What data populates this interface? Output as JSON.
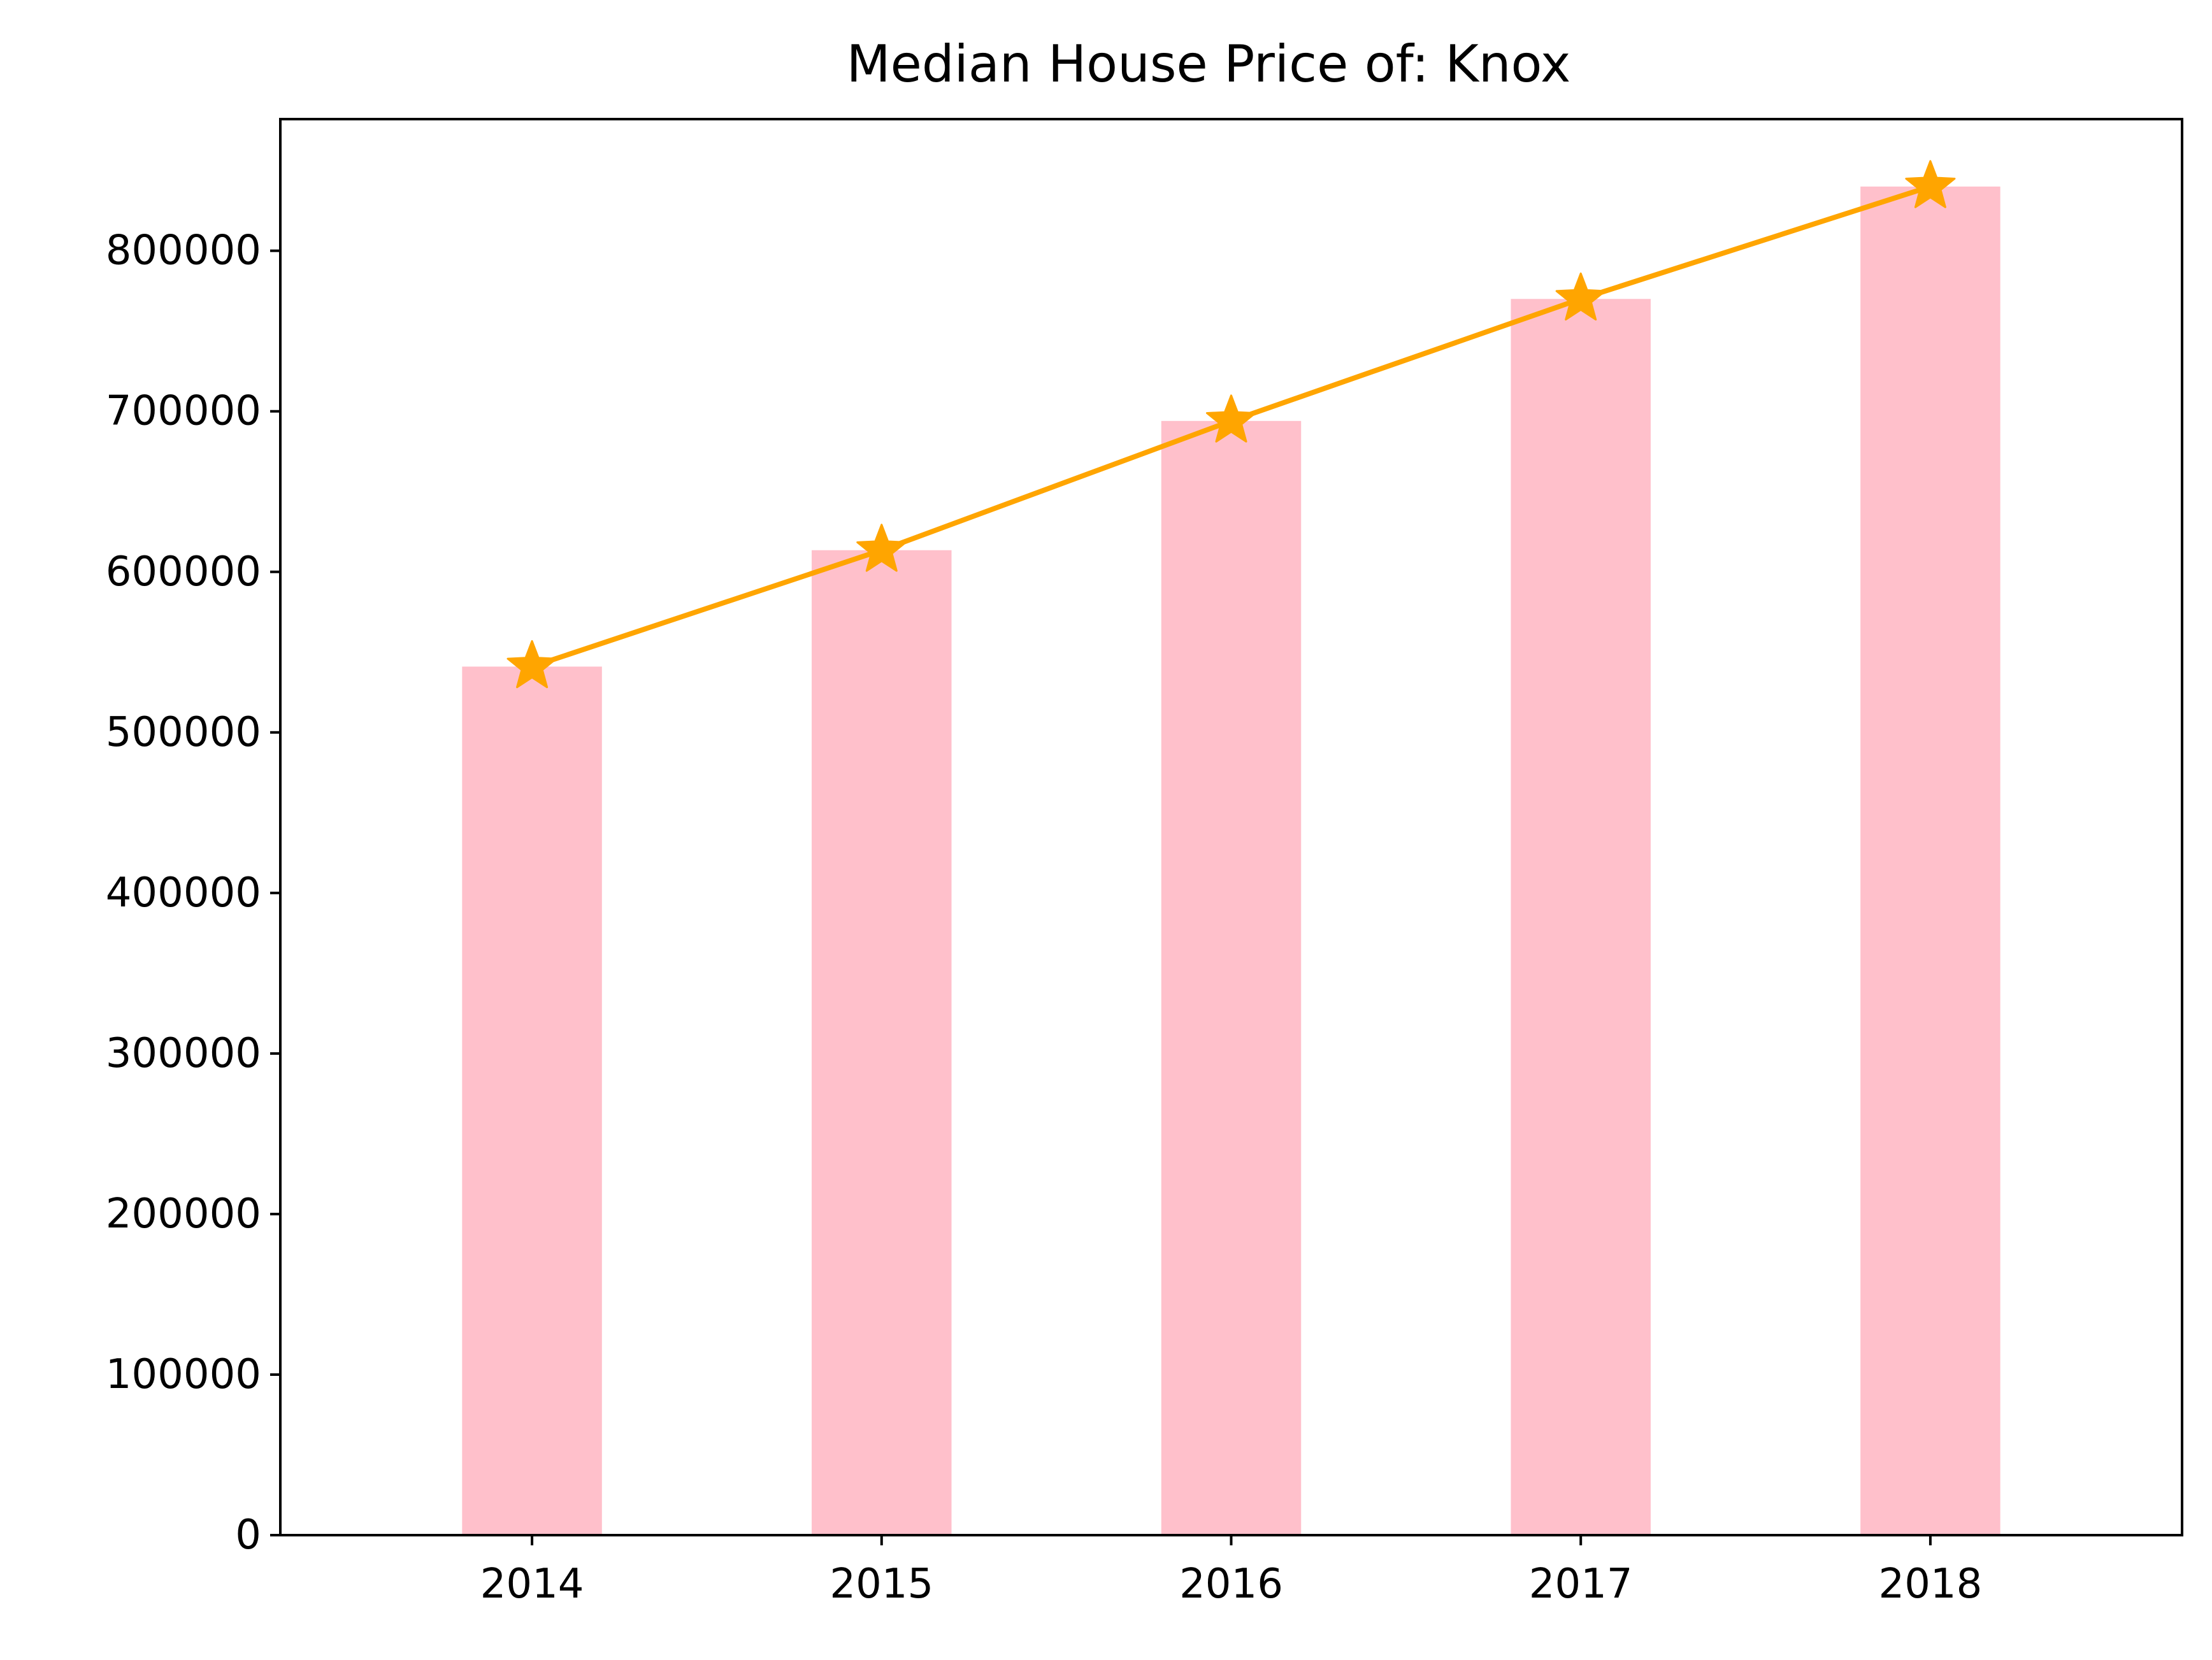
{
  "chart_data": {
    "type": "bar",
    "title": "Median House Price of: Knox",
    "xlabel": "",
    "ylabel": "",
    "categories": [
      "2014",
      "2015",
      "2016",
      "2017",
      "2018"
    ],
    "series": [
      {
        "type": "bar",
        "values": [
          541000,
          613500,
          694000,
          770000,
          840000
        ],
        "color": "#ffc0cb"
      },
      {
        "type": "line",
        "marker": "star",
        "values": [
          541000,
          613500,
          694000,
          770000,
          840000
        ],
        "color": "#ffa500"
      }
    ],
    "ylim": [
      0,
      882000
    ],
    "yticks": [
      "0",
      "100000",
      "200000",
      "300000",
      "400000",
      "500000",
      "600000",
      "700000",
      "800000"
    ],
    "grid": false,
    "legend": false
  }
}
